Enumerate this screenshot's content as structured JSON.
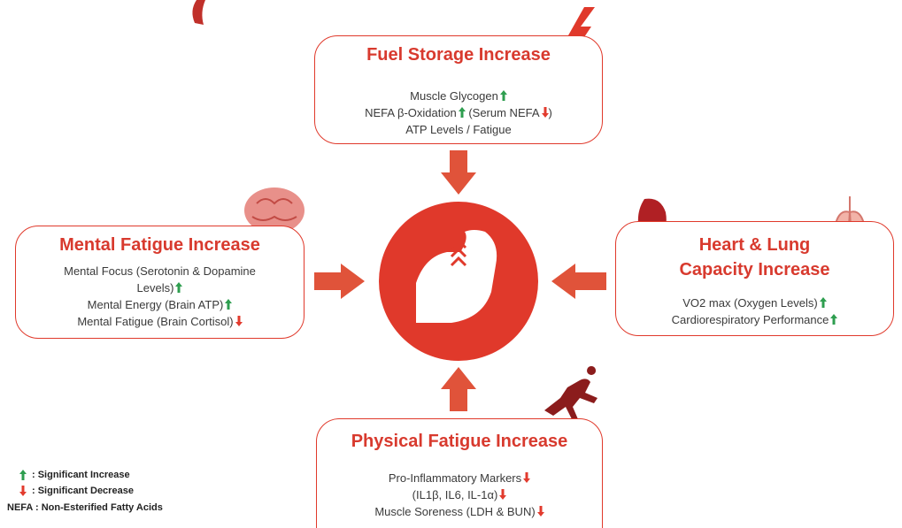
{
  "top": {
    "title": "Fuel Storage Increase",
    "lines": [
      [
        "Muscle Glycogen"
      ],
      [
        "NEFA β-Oxidation",
        "(Serum NEFA",
        ")"
      ],
      [
        "ATP Levels / Fatigue"
      ]
    ]
  },
  "left": {
    "title": "Mental Fatigue Increase",
    "lines": [
      [
        "Mental Focus (Serotonin & Dopamine"
      ],
      [
        "Levels)"
      ],
      [
        "Mental Energy (Brain ATP)"
      ],
      [
        "Mental Fatigue (Brain Cortisol)"
      ]
    ]
  },
  "right": {
    "title": [
      "Heart & Lung",
      "Capacity Increase"
    ],
    "lines": [
      [
        "VO2 max (Oxygen Levels)"
      ],
      [
        "Cardiorespiratory Performance"
      ]
    ]
  },
  "bottom": {
    "title": "Physical Fatigue Increase",
    "lines": [
      [
        "Pro-Inflammatory Markers"
      ],
      [
        "(IL1β, IL6, IL-1α)"
      ],
      [
        "Muscle Soreness (LDH & BUN)"
      ]
    ]
  },
  "legend": {
    "increase": ": Significant Increase",
    "decrease": ": Significant Decrease",
    "abbr": "NEFA",
    "abbr_text": ": Non-Esterified Fatty Acids"
  }
}
